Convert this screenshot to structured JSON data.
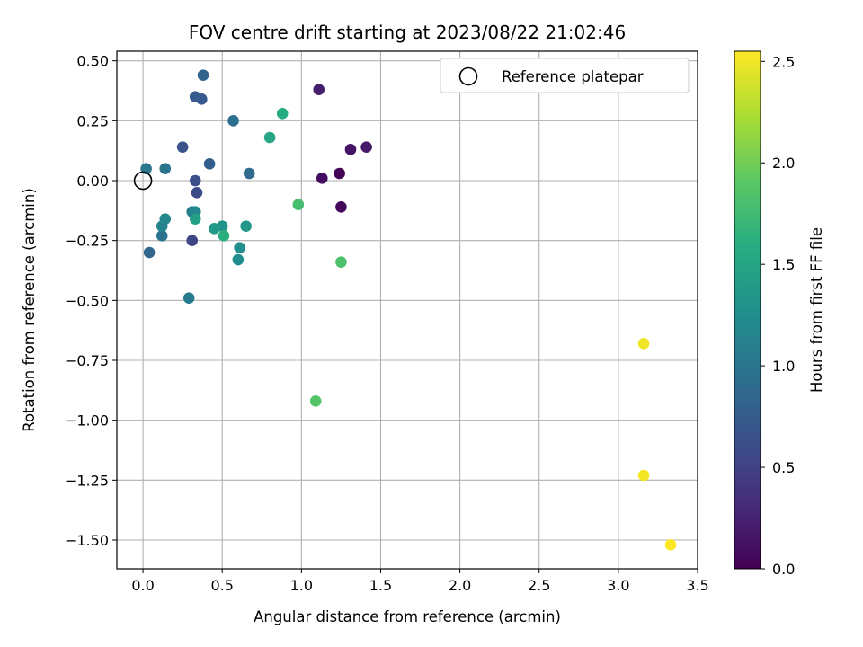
{
  "chart_data": {
    "type": "scatter",
    "title": "FOV centre drift starting at 2023/08/22 21:02:46",
    "xlabel": "Angular distance from reference (arcmin)",
    "ylabel": "Rotation from reference (arcmin)",
    "xlim": [
      -0.165,
      3.5
    ],
    "ylim": [
      -1.62,
      0.54
    ],
    "xticks": [
      "0.0",
      "0.5",
      "1.0",
      "1.5",
      "2.0",
      "2.5",
      "3.0",
      "3.5"
    ],
    "xtick_values": [
      0,
      0.5,
      1,
      1.5,
      2,
      2.5,
      3,
      3.5
    ],
    "yticks": [
      "0.50",
      "0.25",
      "0.00",
      "−0.25",
      "−0.50",
      "−0.75",
      "−1.00",
      "−1.25",
      "−1.50"
    ],
    "ytick_values": [
      0.5,
      0.25,
      0,
      -0.25,
      -0.5,
      -0.75,
      -1.0,
      -1.25,
      -1.5
    ],
    "grid": true,
    "legend": {
      "placement": "top-right",
      "entries": [
        {
          "label": "Reference platepar",
          "marker": "open-circle"
        }
      ]
    },
    "reference_point": {
      "x": 0.0,
      "y": 0.0
    },
    "colorbar": {
      "label": "Hours from first FF file",
      "range": [
        0.0,
        2.55
      ],
      "ticks": [
        "0.0",
        "0.5",
        "1.0",
        "1.5",
        "2.0",
        "2.5"
      ],
      "tick_values": [
        0,
        0.5,
        1,
        1.5,
        2,
        2.5
      ],
      "colormap": "viridis"
    },
    "points": [
      {
        "x": 1.24,
        "y": 0.03,
        "c": 0.02
      },
      {
        "x": 1.25,
        "y": -0.11,
        "c": 0.05
      },
      {
        "x": 1.13,
        "y": 0.01,
        "c": 0.09
      },
      {
        "x": 1.31,
        "y": 0.13,
        "c": 0.13
      },
      {
        "x": 1.41,
        "y": 0.14,
        "c": 0.18
      },
      {
        "x": 1.11,
        "y": 0.38,
        "c": 0.22
      },
      {
        "x": 0.31,
        "y": -0.25,
        "c": 0.55
      },
      {
        "x": 0.34,
        "y": -0.05,
        "c": 0.58
      },
      {
        "x": 0.33,
        "y": 0.0,
        "c": 0.62
      },
      {
        "x": 0.25,
        "y": 0.14,
        "c": 0.66
      },
      {
        "x": 0.37,
        "y": 0.34,
        "c": 0.7
      },
      {
        "x": 0.33,
        "y": 0.35,
        "c": 0.74
      },
      {
        "x": 0.42,
        "y": 0.07,
        "c": 0.78
      },
      {
        "x": 0.38,
        "y": 0.44,
        "c": 0.82
      },
      {
        "x": 0.04,
        "y": -0.3,
        "c": 0.86
      },
      {
        "x": 0.67,
        "y": 0.03,
        "c": 0.9
      },
      {
        "x": 0.57,
        "y": 0.25,
        "c": 0.94
      },
      {
        "x": 0.12,
        "y": -0.23,
        "c": 0.98
      },
      {
        "x": 0.14,
        "y": 0.05,
        "c": 1.0
      },
      {
        "x": 0.02,
        "y": 0.05,
        "c": 1.02
      },
      {
        "x": 0.29,
        "y": -0.49,
        "c": 1.06
      },
      {
        "x": 0.31,
        "y": -0.13,
        "c": 1.1
      },
      {
        "x": 0.12,
        "y": -0.19,
        "c": 1.14
      },
      {
        "x": 0.33,
        "y": -0.13,
        "c": 1.18
      },
      {
        "x": 0.14,
        "y": -0.16,
        "c": 1.2
      },
      {
        "x": 0.6,
        "y": -0.33,
        "c": 1.24
      },
      {
        "x": 0.61,
        "y": -0.28,
        "c": 1.28
      },
      {
        "x": 0.5,
        "y": -0.19,
        "c": 1.32
      },
      {
        "x": 0.65,
        "y": -0.19,
        "c": 1.36
      },
      {
        "x": 0.45,
        "y": -0.2,
        "c": 1.4
      },
      {
        "x": 0.33,
        "y": -0.16,
        "c": 1.44
      },
      {
        "x": 0.8,
        "y": 0.18,
        "c": 1.52
      },
      {
        "x": 0.88,
        "y": 0.28,
        "c": 1.56
      },
      {
        "x": 0.51,
        "y": -0.23,
        "c": 1.62
      },
      {
        "x": 0.98,
        "y": -0.1,
        "c": 1.78
      },
      {
        "x": 1.25,
        "y": -0.34,
        "c": 1.82
      },
      {
        "x": 1.09,
        "y": -0.92,
        "c": 1.86
      },
      {
        "x": 3.16,
        "y": -0.68,
        "c": 2.5
      },
      {
        "x": 3.16,
        "y": -1.23,
        "c": 2.52
      },
      {
        "x": 3.33,
        "y": -1.52,
        "c": 2.55
      }
    ]
  }
}
